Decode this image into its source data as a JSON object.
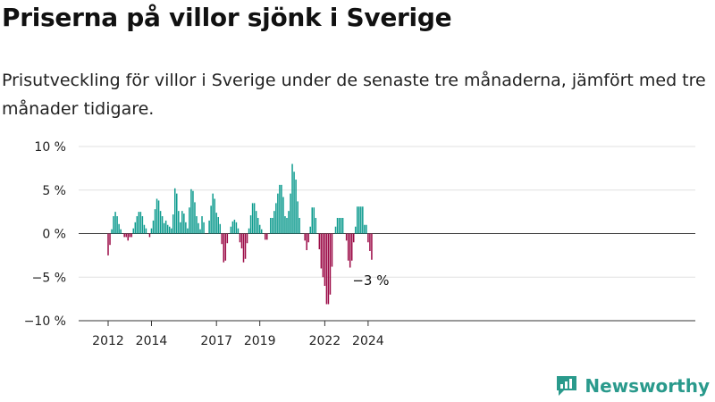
{
  "header": {
    "title": "Priserna på villor sjönk i Sverige",
    "subtitle": "Prisutveckling för villor i Sverige under de senaste tre månaderna, jämfört med tre månader tidigare."
  },
  "brand": {
    "name": "Newsworthy"
  },
  "colors": {
    "positive": "#0f9c8f",
    "negative": "#9b0a46",
    "grid": "#e0e0e0",
    "axis": "#333333",
    "brand": "#2a9a8c"
  },
  "chart_data": {
    "type": "bar",
    "y_unit": "%",
    "ylim": [
      -10,
      10
    ],
    "y_ticks": [
      10,
      5,
      0,
      -5,
      -10
    ],
    "y_tick_labels": [
      "10 %",
      "5 %",
      "0 %",
      "−5 %",
      "−10 %"
    ],
    "x_ticks": [
      "2012",
      "2014",
      "2017",
      "2019",
      "2022",
      "2024"
    ],
    "grid": true,
    "end_label": "−3 %",
    "start": "2012-01",
    "values": [
      -2.5,
      -1.3,
      0.5,
      2.0,
      2.5,
      2.0,
      1.1,
      0.5,
      0,
      -0.4,
      -0.4,
      -0.8,
      -0.4,
      -0.4,
      0.6,
      1.3,
      2.0,
      2.5,
      2.5,
      2.0,
      1.0,
      0.6,
      0,
      -0.4,
      0.6,
      1.5,
      2.8,
      4.0,
      3.8,
      2.6,
      2.0,
      1.2,
      1.5,
      1.0,
      0.8,
      0.6,
      2.2,
      5.2,
      4.6,
      2.6,
      1.3,
      2.6,
      2.3,
      1.3,
      0.6,
      3.0,
      5.1,
      4.9,
      3.6,
      2.0,
      1.2,
      0.5,
      2.0,
      1.3,
      0,
      0,
      1.5,
      3.2,
      4.6,
      4.0,
      2.4,
      1.9,
      1.1,
      -1.2,
      -3.3,
      -3.1,
      -1.1,
      0,
      0.8,
      1.4,
      1.6,
      1.3,
      0.6,
      -1.0,
      -1.7,
      -3.3,
      -2.9,
      -1.1,
      0.6,
      2.1,
      3.5,
      3.5,
      2.6,
      1.8,
      1.0,
      0.5,
      0,
      -0.7,
      -0.7,
      0,
      1.8,
      1.8,
      2.6,
      3.5,
      4.6,
      5.6,
      5.6,
      4.2,
      2.0,
      1.8,
      2.6,
      4.6,
      8.0,
      7.1,
      6.2,
      3.7,
      1.8,
      0,
      0,
      -0.8,
      -1.9,
      -1.0,
      0.8,
      3.0,
      3.0,
      1.8,
      0,
      -1.8,
      -4.0,
      -5.0,
      -6.0,
      -8.1,
      -8.1,
      -7.0,
      -3.8,
      0,
      0.8,
      1.8,
      1.8,
      1.8,
      1.8,
      0,
      -0.8,
      -3.1,
      -3.9,
      -3.1,
      -1.0,
      0.8,
      3.1,
      3.1,
      3.1,
      3.1,
      1.0,
      1.0,
      -1.0,
      -2.0,
      -3.0
    ]
  }
}
